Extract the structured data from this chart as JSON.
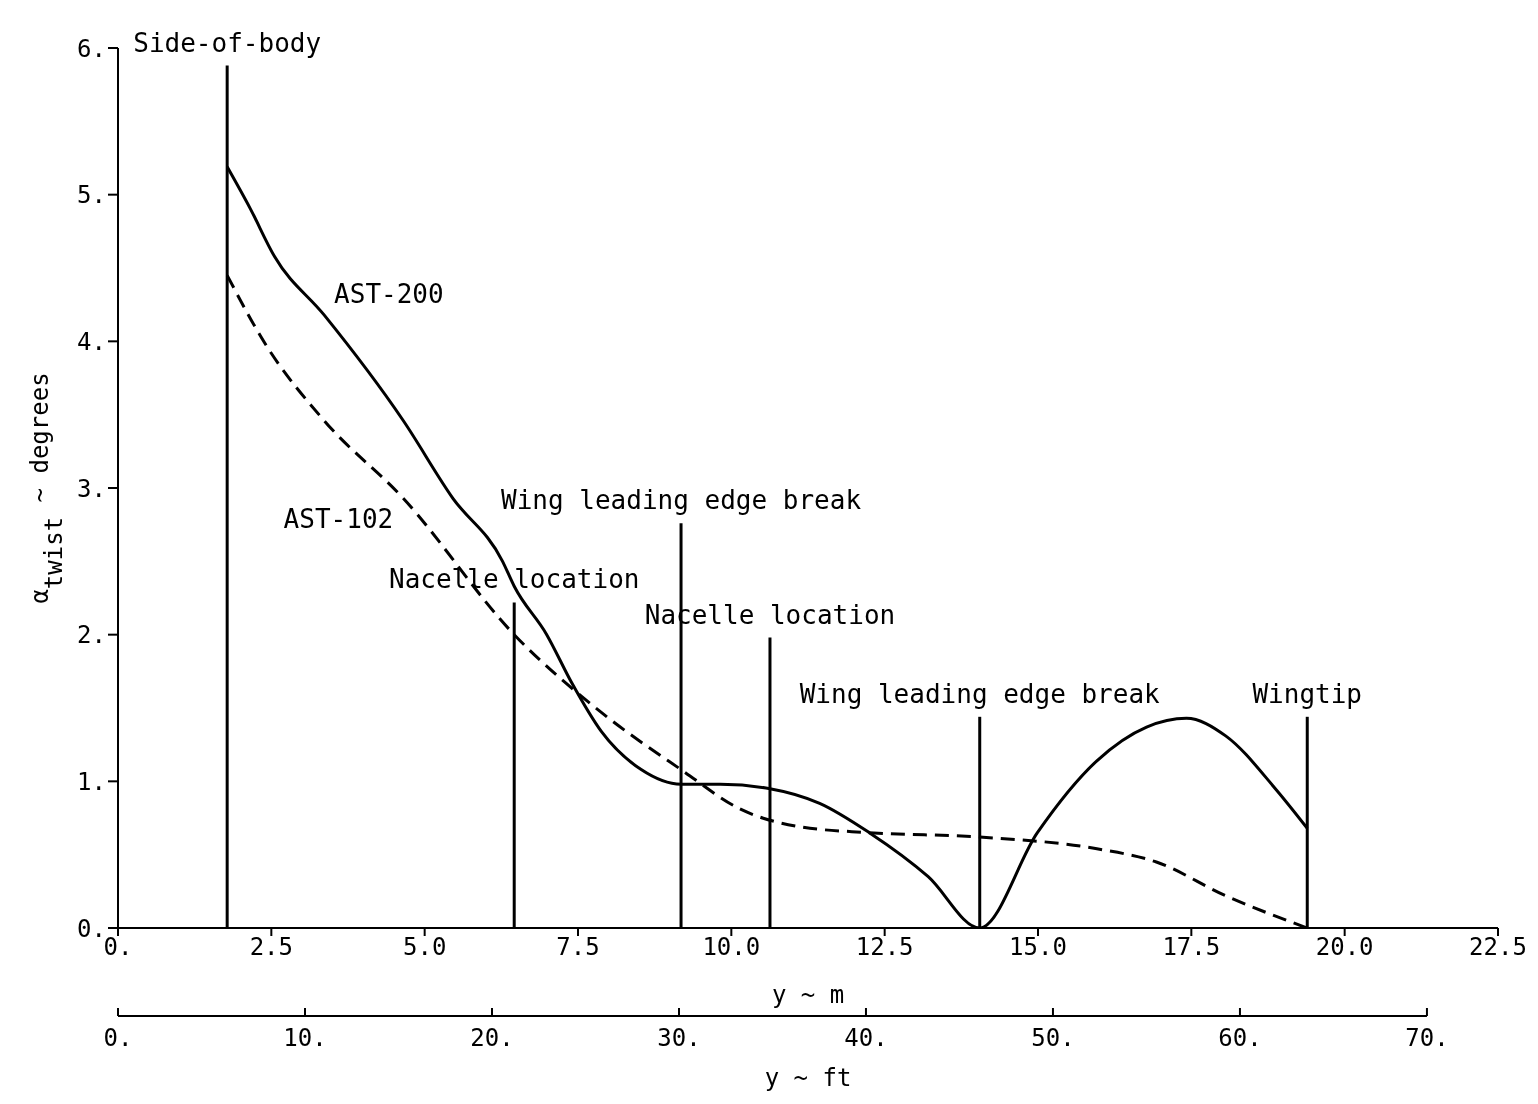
{
  "chart_data": {
    "type": "line",
    "xlabel": "y ~ m",
    "x2label": "y ~ ft",
    "ylabel": "α$_{twist}$ ~ degrees",
    "xlim": [
      0,
      22.5
    ],
    "xticks": [
      {
        "value": 0,
        "label": "0."
      },
      2.5,
      {
        "value": 5,
        "label": "5.0"
      },
      7.5,
      {
        "value": 10,
        "label": "10.0"
      },
      12.5,
      {
        "value": 15,
        "label": "15.0"
      },
      17.5,
      {
        "value": 20,
        "label": "20.0"
      },
      22.5
    ],
    "x2lim": [
      0,
      73.8
    ],
    "x2ticks": [
      {
        "value": 0,
        "label": "0."
      },
      {
        "value": 10,
        "label": "10."
      },
      {
        "value": 20,
        "label": "20."
      },
      {
        "value": 30,
        "label": "30."
      },
      {
        "value": 40,
        "label": "40."
      },
      {
        "value": 50,
        "label": "50."
      },
      {
        "value": 60,
        "label": "60."
      },
      {
        "value": 70,
        "label": "70."
      }
    ],
    "ylim": [
      0,
      6
    ],
    "yticks": [
      {
        "value": 0,
        "label": "0."
      },
      {
        "value": 1,
        "label": "1."
      },
      {
        "value": 2,
        "label": "2."
      },
      {
        "value": 3,
        "label": "3."
      },
      {
        "value": 4,
        "label": "4."
      },
      {
        "value": 5,
        "label": "5."
      },
      {
        "value": 6,
        "label": "6."
      }
    ],
    "grid": false,
    "legend": false,
    "marker": "none",
    "series": [
      {
        "name": "AST-200",
        "color": "#000000",
        "line_style": "solid",
        "x": [
          1.78,
          2.15,
          2.55,
          3.36,
          4.65,
          5.46,
          6.27,
          6.46,
          6.99,
          7.4,
          7.88,
          8.53,
          9.18,
          9.82,
          10.63,
          11.44,
          12.25,
          13.21,
          14.05,
          14.99,
          15.96,
          16.77,
          17.42,
          18.06,
          18.87,
          19.39
        ],
        "values": [
          5.19,
          4.91,
          4.58,
          4.18,
          3.46,
          2.93,
          2.5,
          2.33,
          2.0,
          1.67,
          1.34,
          1.08,
          0.98,
          0.98,
          0.95,
          0.85,
          0.65,
          0.35,
          0.0,
          0.65,
          1.14,
          1.37,
          1.43,
          1.31,
          0.95,
          0.68
        ]
      },
      {
        "name": "AST-102",
        "color": "#000000",
        "line_style": "dashed",
        "x": [
          1.78,
          2.39,
          3.36,
          4.65,
          6.46,
          7.88,
          9.18,
          10.15,
          11.12,
          12.25,
          14.05,
          15.96,
          16.93,
          18.06,
          19.39
        ],
        "values": [
          4.45,
          3.99,
          3.46,
          2.93,
          2.0,
          1.47,
          1.08,
          0.81,
          0.69,
          0.65,
          0.62,
          0.54,
          0.45,
          0.22,
          0.0
        ]
      }
    ],
    "ref_lines": [
      {
        "axis": "x",
        "value": 1.78,
        "label": "Side-of-body"
      },
      {
        "axis": "x",
        "value": 6.46,
        "label": "Nacelle location"
      },
      {
        "axis": "x",
        "value": 9.18,
        "label": "Wing leading edge break"
      },
      {
        "axis": "x",
        "value": 10.63,
        "label": "Nacelle location"
      },
      {
        "axis": "x",
        "value": 14.05,
        "label": "Wing leading edge break"
      },
      {
        "axis": "x",
        "value": 19.39,
        "label": "Wingtip"
      }
    ]
  }
}
